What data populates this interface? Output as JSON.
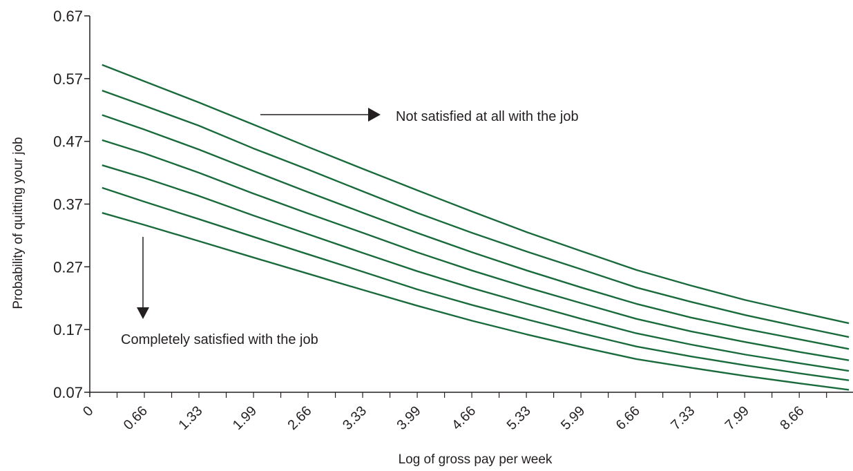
{
  "chart_data": {
    "type": "line",
    "title": "",
    "xlabel": "Log of gross pay per week",
    "ylabel": "Probability of quitting your job",
    "xlim": [
      0,
      9.3
    ],
    "ylim": [
      0.07,
      0.67
    ],
    "x_tick_labels": [
      "0",
      "0.66",
      "1.33",
      "1.99",
      "2.66",
      "3.33",
      "3.99",
      "4.66",
      "5.33",
      "5.99",
      "6.66",
      "7.33",
      "7.99",
      "8.66"
    ],
    "x_tick_values": [
      0,
      0.66,
      1.33,
      1.99,
      2.66,
      3.33,
      3.99,
      4.66,
      5.33,
      5.99,
      6.66,
      7.33,
      7.99,
      8.66
    ],
    "y_ticks": [
      0.07,
      0.17,
      0.27,
      0.37,
      0.47,
      0.57,
      0.67
    ],
    "y_tick_labels": [
      "0.07",
      "0.17",
      "0.27",
      "0.37",
      "0.47",
      "0.57",
      "0.67"
    ],
    "grid": false,
    "line_color": "#1a6b3c",
    "x": [
      0.15,
      0.66,
      1.33,
      1.99,
      2.66,
      3.33,
      3.99,
      4.66,
      5.33,
      5.99,
      6.66,
      7.33,
      7.99,
      8.66,
      9.25
    ],
    "series": [
      {
        "values": [
          0.592,
          0.566,
          0.532,
          0.497,
          0.461,
          0.426,
          0.392,
          0.358,
          0.325,
          0.295,
          0.265,
          0.24,
          0.217,
          0.197,
          0.18
        ]
      },
      {
        "values": [
          0.551,
          0.527,
          0.495,
          0.459,
          0.425,
          0.39,
          0.356,
          0.324,
          0.294,
          0.266,
          0.237,
          0.214,
          0.193,
          0.174,
          0.158
        ]
      },
      {
        "values": [
          0.512,
          0.489,
          0.457,
          0.423,
          0.389,
          0.356,
          0.324,
          0.293,
          0.264,
          0.237,
          0.211,
          0.189,
          0.171,
          0.154,
          0.139
        ]
      },
      {
        "values": [
          0.472,
          0.451,
          0.42,
          0.387,
          0.355,
          0.324,
          0.293,
          0.264,
          0.237,
          0.212,
          0.187,
          0.167,
          0.15,
          0.134,
          0.121
        ]
      },
      {
        "values": [
          0.432,
          0.412,
          0.383,
          0.352,
          0.322,
          0.292,
          0.263,
          0.236,
          0.211,
          0.187,
          0.164,
          0.146,
          0.13,
          0.116,
          0.104
        ]
      },
      {
        "values": [
          0.396,
          0.374,
          0.346,
          0.318,
          0.29,
          0.262,
          0.234,
          0.209,
          0.186,
          0.164,
          0.143,
          0.127,
          0.113,
          0.1,
          0.089
        ]
      },
      {
        "values": [
          0.356,
          0.337,
          0.311,
          0.285,
          0.259,
          0.233,
          0.208,
          0.184,
          0.162,
          0.142,
          0.123,
          0.109,
          0.096,
          0.084,
          0.074
        ]
      }
    ],
    "annotations": [
      {
        "text": "Not satisfied at all with the job",
        "arrow": "right"
      },
      {
        "text": "Completely satisfied with the job",
        "arrow": "down"
      }
    ]
  }
}
